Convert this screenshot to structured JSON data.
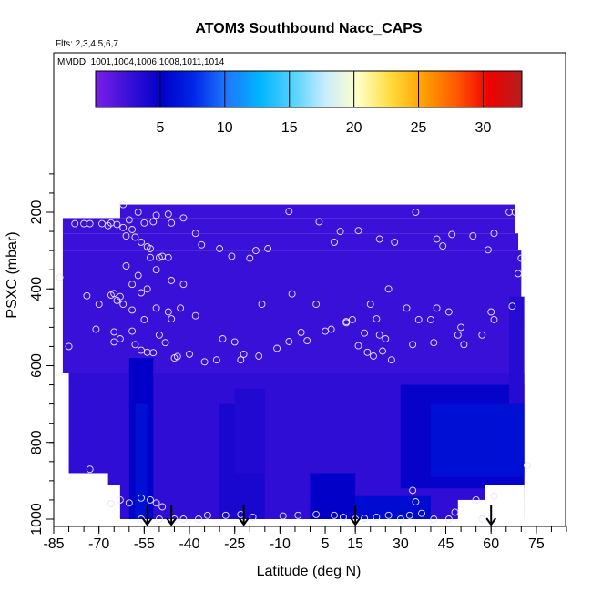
{
  "chart_data": {
    "type": "heatmap",
    "title": "ATOM3 Southbound Nacc_CAPS",
    "subtitle_flights": "Flts: 2,3,4,5,6,7",
    "subtitle_dates": "MMDD: 1001,1004,1006,1008,1011,1014",
    "xlabel": "Latitude (deg N)",
    "ylabel": "PSXC (mbar)",
    "xlim": [
      -85,
      85
    ],
    "ylim": [
      1000,
      75
    ],
    "y_reversed": true,
    "x_ticks": [
      -85,
      -70,
      -55,
      -40,
      -25,
      -10,
      5,
      15,
      30,
      45,
      60,
      75
    ],
    "x_tick_labels": [
      "-85",
      "-70",
      "-55",
      "-40",
      "-25",
      "-10",
      "5",
      "15",
      "30",
      "45",
      "60",
      "75"
    ],
    "y_ticks": [
      200,
      400,
      600,
      800,
      1000
    ],
    "y_tick_labels": [
      "200",
      "400",
      "600",
      "800",
      "1000"
    ],
    "colorbar": {
      "range": [
        0,
        33
      ],
      "ticks": [
        5,
        10,
        15,
        20,
        25,
        30
      ],
      "tick_labels": [
        "5",
        "10",
        "15",
        "20",
        "25",
        "30"
      ],
      "colors": [
        "#7a1fe8",
        "#3a10d8",
        "#0000c8",
        "#0028e8",
        "#1e78ff",
        "#00b4ff",
        "#50d2ff",
        "#c8ecff",
        "#ffffc8",
        "#ffdc3c",
        "#ffa000",
        "#ff5a00",
        "#f00000",
        "#b41e1e"
      ]
    },
    "field_regions": [
      {
        "lat0": -63,
        "lat1": 68,
        "p_top": 180,
        "p_bot": 215,
        "value": 2.5
      },
      {
        "lat0": -82,
        "lat1": 68,
        "p_top": 215,
        "p_bot": 255,
        "value": 2.5
      },
      {
        "lat0": -82,
        "lat1": 69,
        "p_top": 255,
        "p_bot": 300,
        "value": 2.5
      },
      {
        "lat0": -82,
        "lat1": 70,
        "p_top": 300,
        "p_bot": 620,
        "value": 2.6
      },
      {
        "lat0": -80,
        "lat1": 71,
        "p_top": 620,
        "p_bot": 1000,
        "value": 3.0
      },
      {
        "lat0": 30,
        "lat1": 71,
        "p_top": 650,
        "p_bot": 920,
        "value": 4.8
      },
      {
        "lat0": 40,
        "lat1": 71,
        "p_top": 700,
        "p_bot": 890,
        "value": 6.0
      },
      {
        "lat0": -60,
        "lat1": -52,
        "p_top": 580,
        "p_bot": 1000,
        "value": 5.0
      },
      {
        "lat0": -58,
        "lat1": -54,
        "p_top": 700,
        "p_bot": 1000,
        "value": 6.0
      },
      {
        "lat0": -30,
        "lat1": -15,
        "p_top": 700,
        "p_bot": 1000,
        "value": 4.0
      },
      {
        "lat0": 0,
        "lat1": 15,
        "p_top": 880,
        "p_bot": 1000,
        "value": 5.0
      },
      {
        "lat0": 15,
        "lat1": 40,
        "p_top": 940,
        "p_bot": 1000,
        "value": 5.8
      },
      {
        "lat0": -25,
        "lat1": -15,
        "p_top": 660,
        "p_bot": 880,
        "value": 3.6
      },
      {
        "lat0": 66,
        "lat1": 71,
        "p_top": 420,
        "p_bot": 700,
        "value": 3.4
      }
    ],
    "field_masks": [
      {
        "lat0": -82,
        "lat1": -63,
        "p_top": 910,
        "p_bot": 1000
      },
      {
        "lat0": -82,
        "lat1": -67,
        "p_top": 880,
        "p_bot": 1000
      },
      {
        "lat0": 49,
        "lat1": 71,
        "p_top": 950,
        "p_bot": 1000
      },
      {
        "lat0": 58,
        "lat1": 71,
        "p_top": 910,
        "p_bot": 1000
      },
      {
        "lat0": -85,
        "lat1": -63,
        "p_top": 75,
        "p_bot": 215
      },
      {
        "lat0": 68,
        "lat1": 85,
        "p_top": 75,
        "p_bot": 255
      }
    ],
    "sample_points": [
      [
        -62,
        180
      ],
      [
        -57,
        200
      ],
      [
        -51,
        208
      ],
      [
        -47,
        205
      ],
      [
        -42,
        215
      ],
      [
        -60,
        220
      ],
      [
        -66,
        228
      ],
      [
        -64,
        232
      ],
      [
        -55,
        228
      ],
      [
        -52,
        225
      ],
      [
        -46,
        228
      ],
      [
        -78,
        230
      ],
      [
        -73,
        230
      ],
      [
        -75,
        230
      ],
      [
        -69,
        230
      ],
      [
        -67,
        235
      ],
      [
        -62,
        240
      ],
      [
        -59,
        245
      ],
      [
        -61,
        262
      ],
      [
        -58,
        265
      ],
      [
        -56,
        278
      ],
      [
        -54,
        290
      ],
      [
        -53,
        295
      ],
      [
        -49,
        315
      ],
      [
        -50,
        318
      ],
      [
        -47,
        318
      ],
      [
        -38,
        255
      ],
      [
        -36,
        285
      ],
      [
        -30,
        295
      ],
      [
        -26,
        315
      ],
      [
        -20,
        320
      ],
      [
        -14,
        295
      ],
      [
        -7,
        198
      ],
      [
        3,
        225
      ],
      [
        8,
        278
      ],
      [
        10,
        250
      ],
      [
        16,
        248
      ],
      [
        23,
        270
      ],
      [
        28,
        278
      ],
      [
        35,
        200
      ],
      [
        42,
        270
      ],
      [
        44,
        288
      ],
      [
        47,
        258
      ],
      [
        54,
        262
      ],
      [
        61,
        255
      ],
      [
        66,
        200
      ],
      [
        68,
        200
      ],
      [
        70,
        320
      ],
      [
        69,
        360
      ],
      [
        59,
        298
      ],
      [
        -83,
        370
      ],
      [
        -57,
        365
      ],
      [
        -59,
        388
      ],
      [
        -54,
        400
      ],
      [
        -56,
        410
      ],
      [
        -53,
        318
      ],
      [
        -51,
        350
      ],
      [
        -46,
        378
      ],
      [
        -42,
        388
      ],
      [
        -61,
        340
      ],
      [
        -65,
        412
      ],
      [
        -74,
        418
      ],
      [
        -66,
        416
      ],
      [
        -63,
        420
      ],
      [
        -64,
        430
      ],
      [
        -62,
        440
      ],
      [
        -59,
        455
      ],
      [
        -70,
        440
      ],
      [
        -55,
        480
      ],
      [
        -51,
        450
      ],
      [
        -47,
        460
      ],
      [
        -46,
        478
      ],
      [
        -43,
        450
      ],
      [
        -38,
        470
      ],
      [
        -29,
        530
      ],
      [
        -25,
        538
      ],
      [
        -22,
        570
      ],
      [
        -16,
        440
      ],
      [
        -18,
        300
      ],
      [
        -6,
        413
      ],
      [
        2,
        440
      ],
      [
        -3,
        513
      ],
      [
        7,
        505
      ],
      [
        12,
        488
      ],
      [
        14,
        480
      ],
      [
        20,
        440
      ],
      [
        22,
        478
      ],
      [
        19,
        565
      ],
      [
        23,
        520
      ],
      [
        25,
        530
      ],
      [
        26,
        400
      ],
      [
        32,
        450
      ],
      [
        36,
        480
      ],
      [
        40,
        480
      ],
      [
        42,
        450
      ],
      [
        46,
        460
      ],
      [
        49,
        520
      ],
      [
        51,
        545
      ],
      [
        60,
        460
      ],
      [
        61,
        480
      ],
      [
        67,
        445
      ],
      [
        -80,
        550
      ],
      [
        -71,
        505
      ],
      [
        -65,
        512
      ],
      [
        -63,
        530
      ],
      [
        -65,
        538
      ],
      [
        -59,
        510
      ],
      [
        -58,
        545
      ],
      [
        -56,
        560
      ],
      [
        -54,
        565
      ],
      [
        -52,
        566
      ],
      [
        -50,
        520
      ],
      [
        -48,
        540
      ],
      [
        -45,
        580
      ],
      [
        -44,
        576
      ],
      [
        -40,
        570
      ],
      [
        -31,
        585
      ],
      [
        -23,
        585
      ],
      [
        -35,
        590
      ],
      [
        -17,
        575
      ],
      [
        -11,
        555
      ],
      [
        -7,
        537
      ],
      [
        -1,
        535
      ],
      [
        5,
        510
      ],
      [
        12,
        485
      ],
      [
        16,
        548
      ],
      [
        18,
        515
      ],
      [
        21,
        575
      ],
      [
        24,
        562
      ],
      [
        27,
        585
      ],
      [
        34,
        545
      ],
      [
        41,
        540
      ],
      [
        50,
        500
      ],
      [
        57,
        520
      ],
      [
        -73,
        870
      ],
      [
        -66,
        960
      ],
      [
        -63,
        950
      ],
      [
        -60,
        958
      ],
      [
        -56,
        945
      ],
      [
        -53,
        950
      ],
      [
        -51,
        958
      ],
      [
        -49,
        968
      ],
      [
        -56,
        1000
      ],
      [
        -50,
        1000
      ],
      [
        -45,
        1000
      ],
      [
        -42,
        1000
      ],
      [
        -37,
        1000
      ],
      [
        -34,
        990
      ],
      [
        -28,
        990
      ],
      [
        -23,
        988
      ],
      [
        -19,
        995
      ],
      [
        -9,
        992
      ],
      [
        -4,
        990
      ],
      [
        2,
        988
      ],
      [
        8,
        990
      ],
      [
        11,
        995
      ],
      [
        15,
        1000
      ],
      [
        18,
        998
      ],
      [
        22,
        995
      ],
      [
        26,
        990
      ],
      [
        30,
        1000
      ],
      [
        33,
        990
      ],
      [
        37,
        985
      ],
      [
        41,
        1000
      ],
      [
        46,
        1000
      ],
      [
        48,
        982
      ],
      [
        34,
        925
      ],
      [
        35,
        955
      ],
      [
        57,
        1000
      ],
      [
        61,
        940
      ],
      [
        72,
        860
      ],
      [
        55,
        950
      ]
    ],
    "arrow_latitudes": [
      -54,
      -46,
      -22,
      15,
      60
    ]
  }
}
